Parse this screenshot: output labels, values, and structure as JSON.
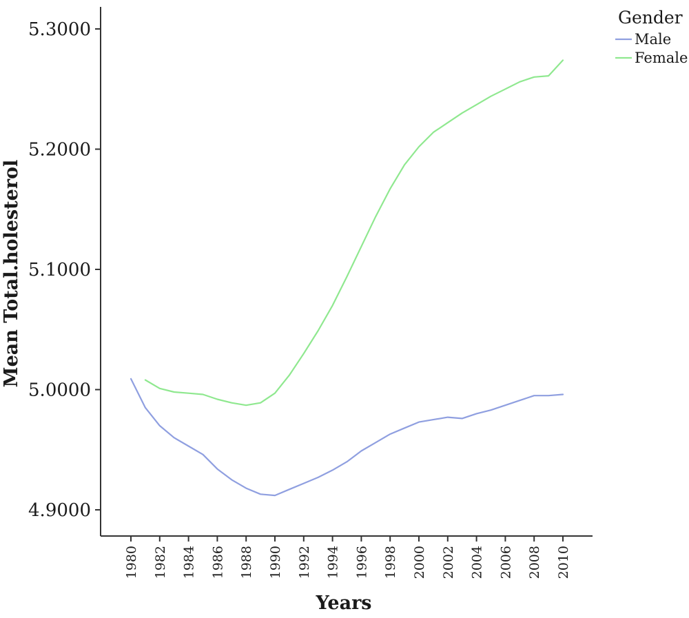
{
  "chart_data": {
    "type": "line",
    "xlabel": "Years",
    "ylabel": "Mean Total.holesterol",
    "xlim": [
      1978,
      2012
    ],
    "ylim": [
      4.885,
      5.31
    ],
    "x_ticks": [
      "1980",
      "1982",
      "1984",
      "1986",
      "1988",
      "1990",
      "1992",
      "1994",
      "1996",
      "1998",
      "2000",
      "2002",
      "2004",
      "2006",
      "2008",
      "2010"
    ],
    "y_ticks": [
      "4.9000",
      "5.0000",
      "5.1000",
      "5.2000",
      "5.3000"
    ],
    "legend": {
      "title": "Gender",
      "position": "top-right"
    },
    "grid": false,
    "series": [
      {
        "name": "Male",
        "color": "#8f9fe0",
        "x": [
          1980,
          1981,
          1982,
          1983,
          1984,
          1985,
          1986,
          1987,
          1988,
          1989,
          1990,
          1991,
          1992,
          1993,
          1994,
          1995,
          1996,
          1997,
          1998,
          1999,
          2000,
          2001,
          2002,
          2003,
          2004,
          2005,
          2006,
          2007,
          2008,
          2009,
          2010
        ],
        "y": [
          5.009,
          4.985,
          4.97,
          4.96,
          4.953,
          4.946,
          4.934,
          4.925,
          4.918,
          4.913,
          4.912,
          4.917,
          4.922,
          4.927,
          4.933,
          4.94,
          4.949,
          4.956,
          4.963,
          4.968,
          4.973,
          4.975,
          4.977,
          4.976,
          4.98,
          4.983,
          4.987,
          4.991,
          4.995,
          4.995,
          4.996
        ]
      },
      {
        "name": "Female",
        "color": "#8fe88f",
        "x": [
          1981,
          1982,
          1983,
          1984,
          1985,
          1986,
          1987,
          1988,
          1989,
          1990,
          1991,
          1992,
          1993,
          1994,
          1995,
          1996,
          1997,
          1998,
          1999,
          2000,
          2001,
          2002,
          2003,
          2004,
          2005,
          2006,
          2007,
          2008,
          2009,
          2010
        ],
        "y": [
          5.008,
          5.001,
          4.998,
          4.997,
          4.996,
          4.992,
          4.989,
          4.987,
          4.989,
          4.997,
          5.012,
          5.03,
          5.049,
          5.07,
          5.094,
          5.119,
          5.144,
          5.167,
          5.187,
          5.202,
          5.214,
          5.222,
          5.23,
          5.237,
          5.244,
          5.25,
          5.256,
          5.26,
          5.261,
          5.274
        ]
      }
    ]
  }
}
